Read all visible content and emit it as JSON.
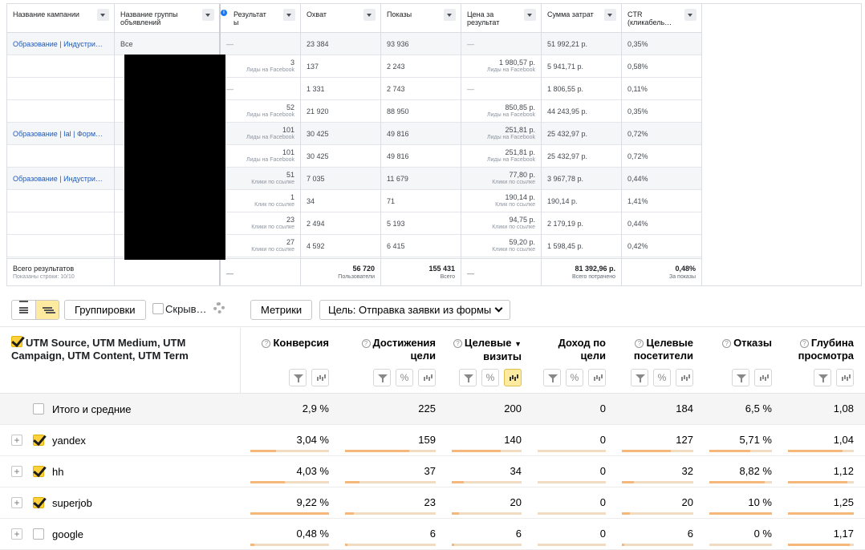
{
  "fb": {
    "columns": [
      {
        "label": "Название кампании"
      },
      {
        "label": "Название группы объявлений"
      },
      {
        "label": "Результат ы"
      },
      {
        "label": "Охват"
      },
      {
        "label": "Показы"
      },
      {
        "label": "Цена за результат"
      },
      {
        "label": "Сумма затрат"
      },
      {
        "label": "CTR (кликабель…"
      }
    ],
    "campaigns": [
      "Образование | Индустри…",
      "Образование | Ial | Форм…",
      "Образование | Индустри…"
    ],
    "group_all": "Все",
    "dash": "—",
    "rows": [
      {
        "res": "—",
        "res_sub": "",
        "reach": "23 384",
        "imp": "93 936",
        "cpr": "—",
        "cpr_sub": "",
        "spend": "51 992,21 р.",
        "ctr": "0,35%"
      },
      {
        "res": "3",
        "res_sub": "Лиды на Facebook",
        "reach": "137",
        "imp": "2 243",
        "cpr": "1 980,57 р.",
        "cpr_sub": "Лиды на Facebook",
        "spend": "5 941,71 р.",
        "ctr": "0,58%"
      },
      {
        "res": "—",
        "res_sub": "",
        "reach": "1 331",
        "imp": "2 743",
        "cpr": "—",
        "cpr_sub": "",
        "spend": "1 806,55 р.",
        "ctr": "0,11%"
      },
      {
        "res": "52",
        "res_sub": "Лиды на Facebook",
        "reach": "21 920",
        "imp": "88 950",
        "cpr": "850,85 р.",
        "cpr_sub": "Лиды на Facebook",
        "spend": "44 243,95 р.",
        "ctr": "0,35%"
      },
      {
        "res": "101",
        "res_sub": "Лиды на Facebook",
        "reach": "30 425",
        "imp": "49 816",
        "cpr": "251,81 р.",
        "cpr_sub": "Лиды на Facebook",
        "spend": "25 432,97 р.",
        "ctr": "0,72%"
      },
      {
        "res": "101",
        "res_sub": "Лиды на Facebook",
        "reach": "30 425",
        "imp": "49 816",
        "cpr": "251,81 р.",
        "cpr_sub": "Лиды на Facebook",
        "spend": "25 432,97 р.",
        "ctr": "0,72%"
      },
      {
        "res": "51",
        "res_sub": "Клики по ссылке",
        "reach": "7 035",
        "imp": "11 679",
        "cpr": "77,80 р.",
        "cpr_sub": "Клики по ссылке",
        "spend": "3 967,78 р.",
        "ctr": "0,44%"
      },
      {
        "res": "1",
        "res_sub": "Клик по ссылке",
        "reach": "34",
        "imp": "71",
        "cpr": "190,14 р.",
        "cpr_sub": "Клик по ссылке",
        "spend": "190,14 р.",
        "ctr": "1,41%"
      },
      {
        "res": "23",
        "res_sub": "Клики по ссылке",
        "reach": "2 494",
        "imp": "5 193",
        "cpr": "94,75 р.",
        "cpr_sub": "Клики по ссылке",
        "spend": "2 179,19 р.",
        "ctr": "0,44%"
      },
      {
        "res": "27",
        "res_sub": "Клики по ссылке",
        "reach": "4 592",
        "imp": "6 415",
        "cpr": "59,20 р.",
        "cpr_sub": "Клики по ссылке",
        "spend": "1 598,45 р.",
        "ctr": "0,42%"
      }
    ],
    "total": {
      "label": "Всего результатов",
      "sub": "Показаны строки: 10/10",
      "res": "—",
      "reach": "56 720",
      "reach_sub": "Пользователи",
      "imp": "155 431",
      "imp_sub": "Всего",
      "cpr": "—",
      "spend": "81 392,96 р.",
      "spend_sub": "Всего потрачено",
      "ctr": "0,48%",
      "ctr_sub": "За показы"
    }
  },
  "toolbar": {
    "groupings": "Группировки",
    "hide": "Скрыв…",
    "metrics": "Метрики",
    "goal": "Цель: Отправка заявки из формы"
  },
  "metrika": {
    "dimension": "UTM Source, UTM Medium, UTM Campaign, UTM Content, UTM Term",
    "columns": [
      {
        "l1": "Конверсия",
        "l2": ""
      },
      {
        "l1": "Достижения",
        "l2": "цели"
      },
      {
        "l1": "Целевые",
        "l2": "визиты"
      },
      {
        "l1": "Доход по",
        "l2": "цели"
      },
      {
        "l1": "Целевые",
        "l2": "посетители"
      },
      {
        "l1": "Отказы",
        "l2": ""
      },
      {
        "l1": "Глубина",
        "l2": "просмотра"
      }
    ],
    "sort_arrow": "▼",
    "total": {
      "label": "Итого и средние",
      "values": [
        "2,9 %",
        "225",
        "200",
        "0",
        "184",
        "6,5 %",
        "1,08"
      ]
    },
    "rows": [
      {
        "name": "yandex",
        "checked": true,
        "values": [
          "3,04 %",
          "159",
          "140",
          "0",
          "127",
          "5,71 %",
          "1,04"
        ],
        "fill": [
          0.33,
          0.71,
          0.7,
          0,
          0.69,
          0.65,
          0.83
        ]
      },
      {
        "name": "hh",
        "checked": true,
        "values": [
          "4,03 %",
          "37",
          "34",
          "0",
          "32",
          "8,82 %",
          "1,12"
        ],
        "fill": [
          0.44,
          0.16,
          0.17,
          0,
          0.17,
          0.88,
          0.9
        ]
      },
      {
        "name": "superjob",
        "checked": true,
        "values": [
          "9,22 %",
          "23",
          "20",
          "0",
          "20",
          "10 %",
          "1,25"
        ],
        "fill": [
          1.0,
          0.1,
          0.1,
          0,
          0.11,
          1.0,
          1.0
        ]
      },
      {
        "name": "google",
        "checked": false,
        "values": [
          "0,48 %",
          "6",
          "6",
          "0",
          "6",
          "0 %",
          "1,17"
        ],
        "fill": [
          0.05,
          0.03,
          0.03,
          0,
          0.03,
          0,
          0.94
        ]
      }
    ]
  }
}
